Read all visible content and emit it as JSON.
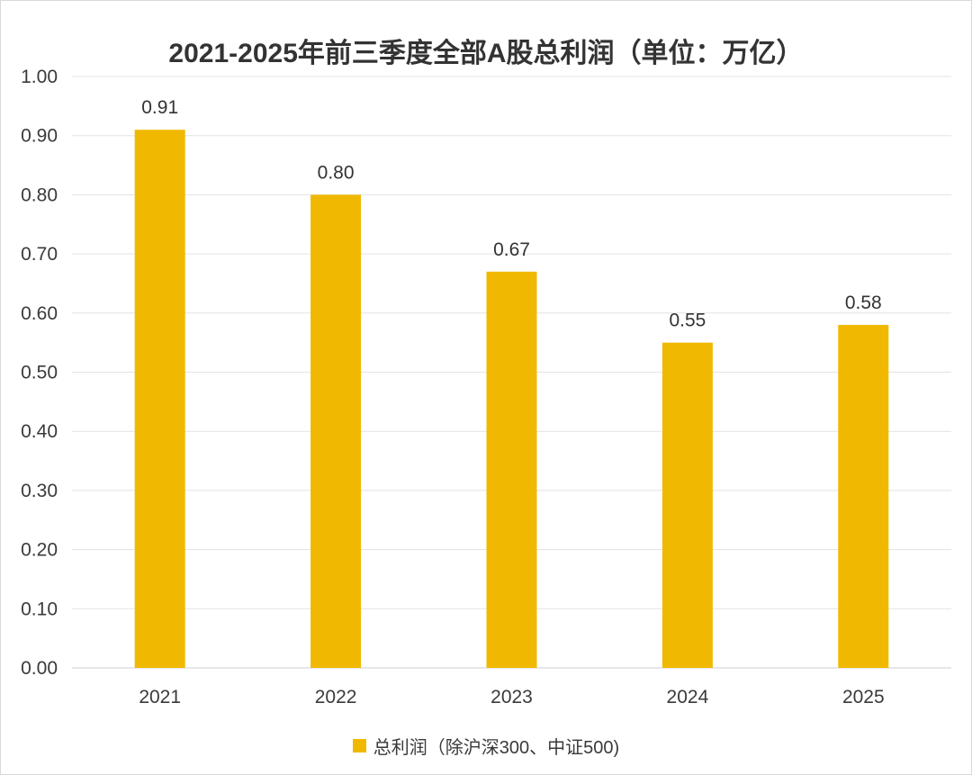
{
  "chart_data": {
    "type": "bar",
    "title": "2021-2025年前三季度全部A股总利润（单位：万亿）",
    "categories": [
      "2021",
      "2022",
      "2023",
      "2024",
      "2025"
    ],
    "series": [
      {
        "name": "总利润（除沪深300、中证500)",
        "values": [
          0.91,
          0.8,
          0.67,
          0.55,
          0.58
        ],
        "labels": [
          "0.91",
          "0.80",
          "0.67",
          "0.55",
          "0.58"
        ]
      }
    ],
    "ylim": [
      0,
      1.0
    ],
    "yticks": [
      "0.00",
      "0.10",
      "0.20",
      "0.30",
      "0.40",
      "0.50",
      "0.60",
      "0.70",
      "0.80",
      "0.90",
      "1.00"
    ],
    "ytick_values": [
      0,
      0.1,
      0.2,
      0.3,
      0.4,
      0.5,
      0.6,
      0.7,
      0.8,
      0.9,
      1.0
    ],
    "xlabel": "",
    "ylabel": "",
    "grid": true,
    "legend_position": "bottom",
    "colors": {
      "bar": "#F0B800",
      "grid": "#e3e3e3",
      "axis": "#cfcfcf"
    }
  }
}
